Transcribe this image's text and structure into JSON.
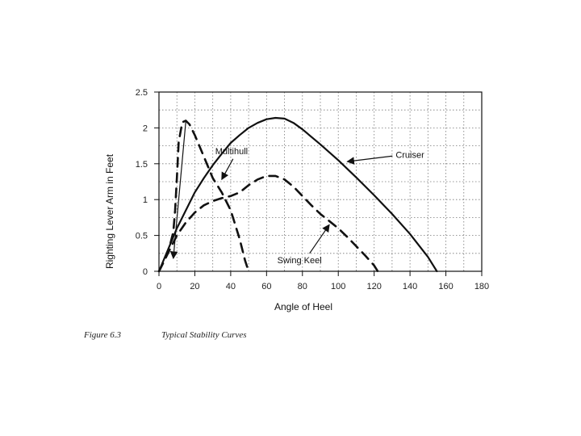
{
  "chart_data": {
    "type": "line",
    "title": "",
    "xlabel": "Angle of Heel",
    "ylabel": "Righting Lever Arm in Feet",
    "xlim": [
      0,
      180
    ],
    "ylim": [
      0,
      2.5
    ],
    "x_ticks": [
      0,
      20,
      40,
      60,
      80,
      100,
      120,
      140,
      160,
      180
    ],
    "y_ticks": [
      "0",
      "0.5",
      "1",
      "1.5",
      "2",
      "2.5"
    ],
    "grid": true,
    "series": [
      {
        "name": "Cruiser",
        "style": "solid",
        "x": [
          0,
          5,
          10,
          15,
          20,
          25,
          30,
          35,
          40,
          45,
          50,
          55,
          60,
          65,
          70,
          75,
          80,
          90,
          100,
          110,
          120,
          130,
          140,
          150,
          155
        ],
        "y": [
          0,
          0.3,
          0.6,
          0.85,
          1.1,
          1.3,
          1.48,
          1.64,
          1.79,
          1.9,
          2.0,
          2.07,
          2.12,
          2.14,
          2.13,
          2.07,
          1.98,
          1.77,
          1.55,
          1.31,
          1.06,
          0.8,
          0.52,
          0.2,
          0
        ]
      },
      {
        "name": "Multihull",
        "style": "dashed",
        "x": [
          0,
          3,
          6,
          8,
          9,
          10,
          11,
          13,
          15,
          17,
          20,
          25,
          30,
          35,
          40,
          45,
          48,
          50
        ],
        "y": [
          0,
          0.15,
          0.35,
          0.55,
          0.85,
          1.3,
          1.8,
          2.08,
          2.1,
          2.05,
          1.9,
          1.6,
          1.3,
          1.1,
          0.85,
          0.45,
          0.15,
          0
        ]
      },
      {
        "name": "Swing Keel",
        "style": "dashed",
        "x": [
          0,
          5,
          10,
          15,
          20,
          25,
          30,
          35,
          40,
          45,
          50,
          55,
          60,
          65,
          70,
          75,
          80,
          85,
          90,
          95,
          100,
          105,
          110,
          115,
          120,
          122
        ],
        "y": [
          0,
          0.25,
          0.5,
          0.68,
          0.82,
          0.92,
          0.98,
          1.02,
          1.05,
          1.1,
          1.2,
          1.28,
          1.33,
          1.33,
          1.28,
          1.18,
          1.05,
          0.92,
          0.8,
          0.7,
          0.6,
          0.48,
          0.35,
          0.22,
          0.08,
          0
        ]
      }
    ],
    "annotations": [
      {
        "text": "Multihull",
        "label_at": [
          44,
          1.68
        ],
        "arrow_to": [
          35,
          1.28
        ]
      },
      {
        "text": "Cruiser",
        "label_at": [
          132,
          1.63
        ],
        "arrow_to": [
          105,
          1.53
        ]
      },
      {
        "text": "Swing Keel",
        "label_at": [
          66,
          0.16
        ],
        "arrow_to": [
          95,
          0.65
        ]
      },
      {
        "text": "",
        "label_at": [
          15,
          2.1
        ],
        "arrow_to": [
          8,
          0.18
        ]
      }
    ]
  },
  "caption": {
    "figure": "Figure 6.3",
    "title": "Typical Stability Curves"
  }
}
